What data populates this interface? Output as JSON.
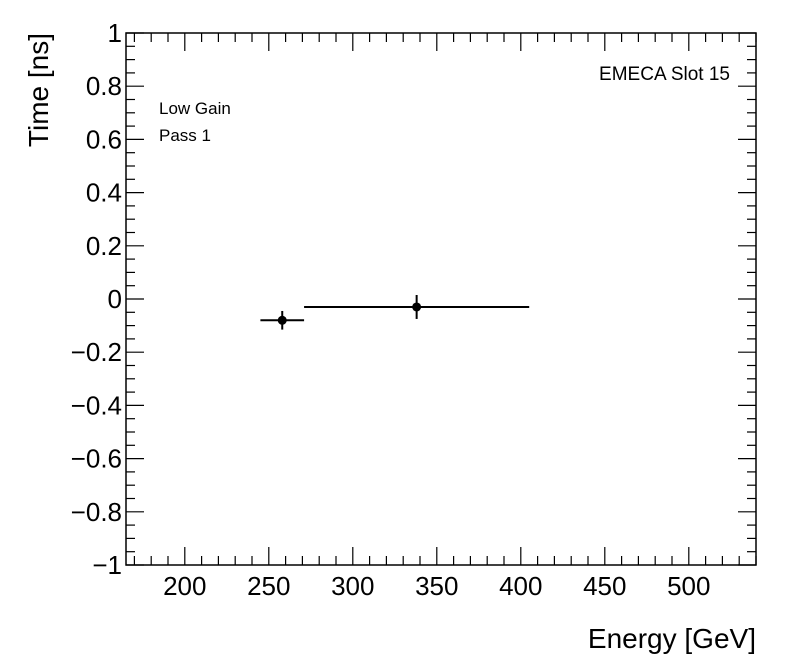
{
  "chart_data": {
    "type": "scatter",
    "xlabel": "Energy [GeV]",
    "ylabel": "Time [ns]",
    "xlim": [
      165,
      540
    ],
    "ylim": [
      -1,
      1
    ],
    "x_ticks": [
      200,
      250,
      300,
      350,
      400,
      450,
      500
    ],
    "y_ticks": [
      -1,
      -0.8,
      -0.6,
      -0.4,
      -0.2,
      0,
      0.2,
      0.4,
      0.6,
      0.8,
      1
    ],
    "y_tick_labels": [
      "−1",
      "−0.8",
      "−0.6",
      "−0.4",
      "−0.2",
      "0",
      "0.2",
      "0.4",
      "0.6",
      "0.8",
      "1"
    ],
    "x_tick_labels": [
      "200",
      "250",
      "300",
      "350",
      "400",
      "450",
      "500"
    ],
    "grid": false,
    "points": [
      {
        "x": 258,
        "y": -0.08,
        "x_err_low": 13,
        "x_err_high": 13,
        "y_err": 0.035
      },
      {
        "x": 338,
        "y": -0.03,
        "x_err_low": 67,
        "x_err_high": 67,
        "y_err": 0.045
      }
    ],
    "annotations": {
      "top_right": "EMECA Slot 15",
      "top_left_line1": "Low Gain",
      "top_left_line2": "Pass 1"
    }
  }
}
